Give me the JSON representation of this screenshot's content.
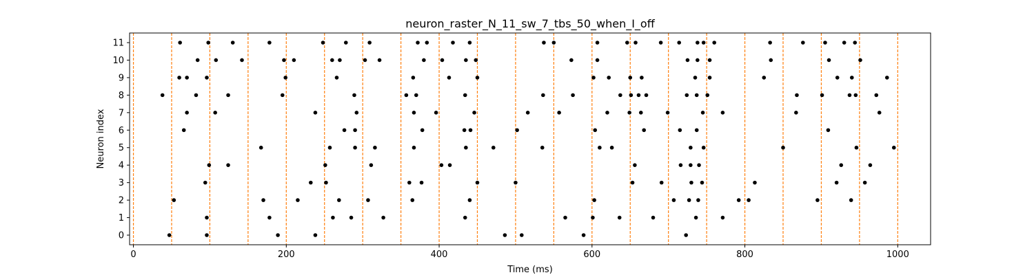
{
  "chart_data": {
    "type": "scatter",
    "title": "neuron_raster_N_11_sw_7_tbs_50_when_I_off",
    "xlabel": "Time (ms)",
    "ylabel": "Neuron index",
    "xlim": [
      -5,
      1043
    ],
    "ylim": [
      -0.55,
      11.55
    ],
    "xticks": [
      0,
      200,
      400,
      600,
      800,
      1000
    ],
    "yticks": [
      0,
      1,
      2,
      3,
      4,
      5,
      6,
      7,
      8,
      9,
      10,
      11
    ],
    "grid": false,
    "legend": "none",
    "vlines": {
      "x": [
        0,
        50,
        100,
        150,
        200,
        250,
        300,
        350,
        400,
        450,
        500,
        550,
        600,
        650,
        700,
        750,
        800,
        850,
        900,
        950,
        1000
      ],
      "color": "#ff7f0e",
      "style": "dashed"
    },
    "series": [
      {
        "color": "#000000",
        "points": [
          [
            47,
            0
          ],
          [
            96,
            0
          ],
          [
            189,
            0
          ],
          [
            238,
            0
          ],
          [
            486,
            0
          ],
          [
            508,
            0
          ],
          [
            589,
            0
          ],
          [
            723,
            0
          ],
          [
            96,
            1
          ],
          [
            178,
            1
          ],
          [
            261,
            1
          ],
          [
            285,
            1
          ],
          [
            327,
            1
          ],
          [
            434,
            1
          ],
          [
            565,
            1
          ],
          [
            601,
            1
          ],
          [
            636,
            1
          ],
          [
            680,
            1
          ],
          [
            736,
            1
          ],
          [
            771,
            1
          ],
          [
            53,
            2
          ],
          [
            170,
            2
          ],
          [
            215,
            2
          ],
          [
            269,
            2
          ],
          [
            307,
            2
          ],
          [
            365,
            2
          ],
          [
            440,
            2
          ],
          [
            603,
            2
          ],
          [
            707,
            2
          ],
          [
            727,
            2
          ],
          [
            739,
            2
          ],
          [
            792,
            2
          ],
          [
            805,
            2
          ],
          [
            895,
            2
          ],
          [
            939,
            2
          ],
          [
            94,
            3
          ],
          [
            232,
            3
          ],
          [
            252,
            3
          ],
          [
            361,
            3
          ],
          [
            377,
            3
          ],
          [
            450,
            3
          ],
          [
            500,
            3
          ],
          [
            653,
            3
          ],
          [
            691,
            3
          ],
          [
            730,
            3
          ],
          [
            744,
            3
          ],
          [
            813,
            3
          ],
          [
            920,
            3
          ],
          [
            957,
            3
          ],
          [
            99,
            4
          ],
          [
            124,
            4
          ],
          [
            251,
            4
          ],
          [
            311,
            4
          ],
          [
            403,
            4
          ],
          [
            414,
            4
          ],
          [
            656,
            4
          ],
          [
            716,
            4
          ],
          [
            729,
            4
          ],
          [
            740,
            4
          ],
          [
            926,
            4
          ],
          [
            964,
            4
          ],
          [
            167,
            5
          ],
          [
            257,
            5
          ],
          [
            290,
            5
          ],
          [
            316,
            5
          ],
          [
            367,
            5
          ],
          [
            435,
            5
          ],
          [
            471,
            5
          ],
          [
            535,
            5
          ],
          [
            610,
            5
          ],
          [
            626,
            5
          ],
          [
            729,
            5
          ],
          [
            746,
            5
          ],
          [
            850,
            5
          ],
          [
            946,
            5
          ],
          [
            995,
            5
          ],
          [
            66,
            6
          ],
          [
            276,
            6
          ],
          [
            290,
            6
          ],
          [
            378,
            6
          ],
          [
            433,
            6
          ],
          [
            441,
            6
          ],
          [
            502,
            6
          ],
          [
            604,
            6
          ],
          [
            668,
            6
          ],
          [
            715,
            6
          ],
          [
            737,
            6
          ],
          [
            909,
            6
          ],
          [
            70,
            7
          ],
          [
            107,
            7
          ],
          [
            238,
            7
          ],
          [
            292,
            7
          ],
          [
            367,
            7
          ],
          [
            396,
            7
          ],
          [
            446,
            7
          ],
          [
            516,
            7
          ],
          [
            557,
            7
          ],
          [
            620,
            7
          ],
          [
            649,
            7
          ],
          [
            664,
            7
          ],
          [
            699,
            7
          ],
          [
            745,
            7
          ],
          [
            771,
            7
          ],
          [
            867,
            7
          ],
          [
            976,
            7
          ],
          [
            38,
            8
          ],
          [
            82,
            8
          ],
          [
            124,
            8
          ],
          [
            195,
            8
          ],
          [
            289,
            8
          ],
          [
            357,
            8
          ],
          [
            370,
            8
          ],
          [
            434,
            8
          ],
          [
            536,
            8
          ],
          [
            575,
            8
          ],
          [
            637,
            8
          ],
          [
            651,
            8
          ],
          [
            661,
            8
          ],
          [
            671,
            8
          ],
          [
            724,
            8
          ],
          [
            737,
            8
          ],
          [
            751,
            8
          ],
          [
            868,
            8
          ],
          [
            901,
            8
          ],
          [
            937,
            8
          ],
          [
            945,
            8
          ],
          [
            972,
            8
          ],
          [
            60,
            9
          ],
          [
            70,
            9
          ],
          [
            96,
            9
          ],
          [
            199,
            9
          ],
          [
            266,
            9
          ],
          [
            366,
            9
          ],
          [
            413,
            9
          ],
          [
            450,
            9
          ],
          [
            602,
            9
          ],
          [
            622,
            9
          ],
          [
            650,
            9
          ],
          [
            665,
            9
          ],
          [
            735,
            9
          ],
          [
            754,
            9
          ],
          [
            825,
            9
          ],
          [
            921,
            9
          ],
          [
            940,
            9
          ],
          [
            986,
            9
          ],
          [
            84,
            10
          ],
          [
            108,
            10
          ],
          [
            142,
            10
          ],
          [
            197,
            10
          ],
          [
            210,
            10
          ],
          [
            260,
            10
          ],
          [
            270,
            10
          ],
          [
            303,
            10
          ],
          [
            322,
            10
          ],
          [
            380,
            10
          ],
          [
            404,
            10
          ],
          [
            435,
            10
          ],
          [
            448,
            10
          ],
          [
            573,
            10
          ],
          [
            607,
            10
          ],
          [
            725,
            10
          ],
          [
            738,
            10
          ],
          [
            754,
            10
          ],
          [
            834,
            10
          ],
          [
            910,
            10
          ],
          [
            951,
            10
          ],
          [
            61,
            11
          ],
          [
            98,
            11
          ],
          [
            130,
            11
          ],
          [
            178,
            11
          ],
          [
            248,
            11
          ],
          [
            278,
            11
          ],
          [
            309,
            11
          ],
          [
            372,
            11
          ],
          [
            384,
            11
          ],
          [
            418,
            11
          ],
          [
            440,
            11
          ],
          [
            537,
            11
          ],
          [
            550,
            11
          ],
          [
            607,
            11
          ],
          [
            646,
            11
          ],
          [
            657,
            11
          ],
          [
            690,
            11
          ],
          [
            714,
            11
          ],
          [
            738,
            11
          ],
          [
            746,
            11
          ],
          [
            760,
            11
          ],
          [
            833,
            11
          ],
          [
            876,
            11
          ],
          [
            905,
            11
          ],
          [
            930,
            11
          ],
          [
            944,
            11
          ]
        ]
      }
    ]
  }
}
